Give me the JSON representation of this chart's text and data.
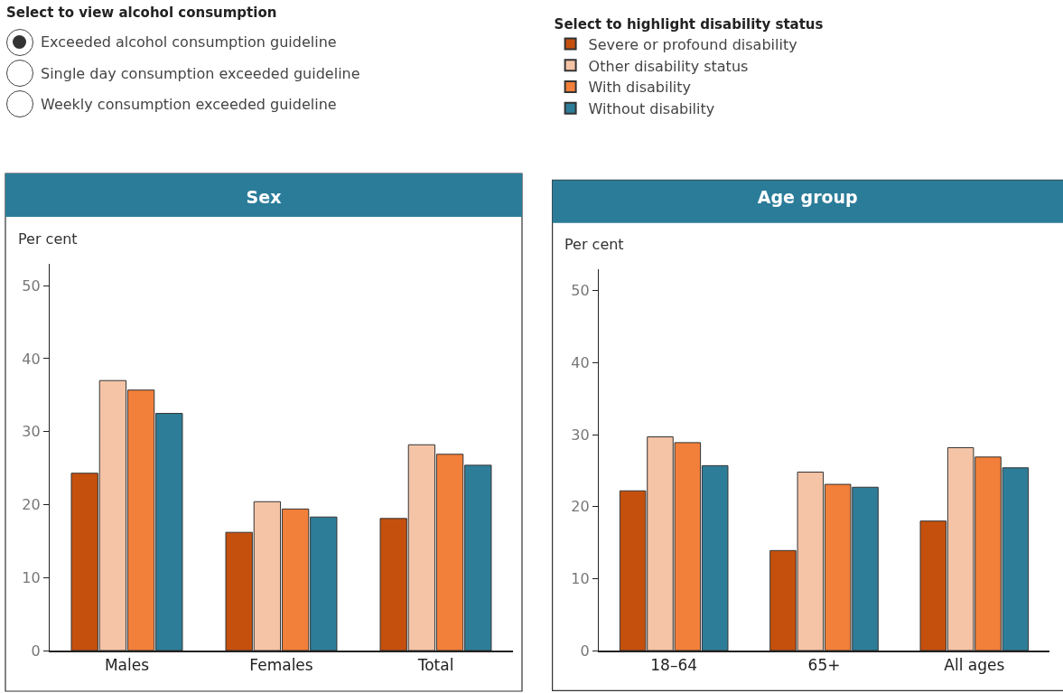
{
  "chart_data": [
    {
      "type": "bar",
      "title": "Sex",
      "ylabel": "Per cent",
      "categories": [
        "Males",
        "Females",
        "Total"
      ],
      "series": [
        {
          "color": "#c5500e",
          "values": [
            24.3,
            16.2,
            18.1
          ]
        },
        {
          "color": "#f5c4a6",
          "values": [
            37.0,
            20.4,
            28.2
          ]
        },
        {
          "color": "#f27f3a",
          "values": [
            35.7,
            19.4,
            26.9
          ]
        },
        {
          "color": "#2e7d98",
          "values": [
            32.5,
            18.3,
            25.4
          ]
        }
      ],
      "ylim": [
        0,
        53
      ],
      "yticks": [
        0,
        10,
        20,
        30,
        40,
        50
      ],
      "legend": false,
      "annotations": [
        "Select to view alcohol consumption",
        "Exceeded alcohol consumption guideline",
        "Single day consumption exceeded guideline",
        "Weekly consumption exceeded guideline"
      ]
    },
    {
      "type": "bar",
      "title": "Age group",
      "ylabel": "Per cent",
      "categories": [
        "18–64",
        "65+",
        "All ages"
      ],
      "series": [
        {
          "name": "Severe or profound disability",
          "color": "#c5500e",
          "values": [
            22.2,
            13.9,
            18.0
          ]
        },
        {
          "name": "Other disability status",
          "color": "#f5c4a6",
          "values": [
            29.7,
            24.8,
            28.2
          ]
        },
        {
          "name": "With disability",
          "color": "#f27f3a",
          "values": [
            28.9,
            23.1,
            26.9
          ]
        },
        {
          "name": "Without disability",
          "color": "#2e7d98",
          "values": [
            25.7,
            22.7,
            25.4
          ]
        }
      ],
      "ylim": [
        0,
        53
      ],
      "yticks": [
        0,
        10,
        20,
        30,
        40,
        50
      ],
      "legend": "top left",
      "legend_title": "Select to highlight disability status"
    }
  ]
}
